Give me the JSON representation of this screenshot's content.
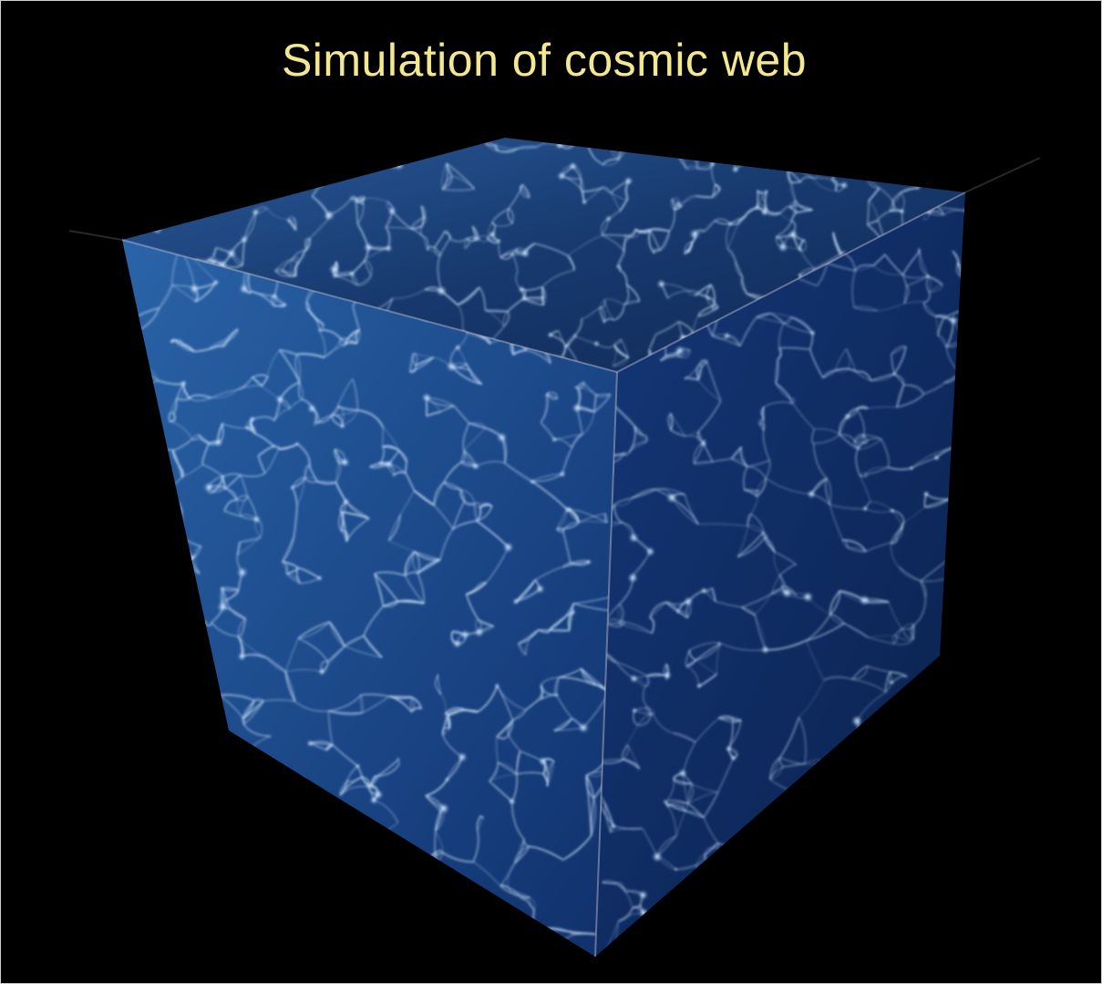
{
  "title": "Simulation of cosmic web",
  "colors": {
    "background": "#000000",
    "title": "#f3e78f",
    "filament": "#cfe6ff",
    "void": "#0a1a3a"
  },
  "image": {
    "subject": "cosmic-web-simulation-cube"
  }
}
